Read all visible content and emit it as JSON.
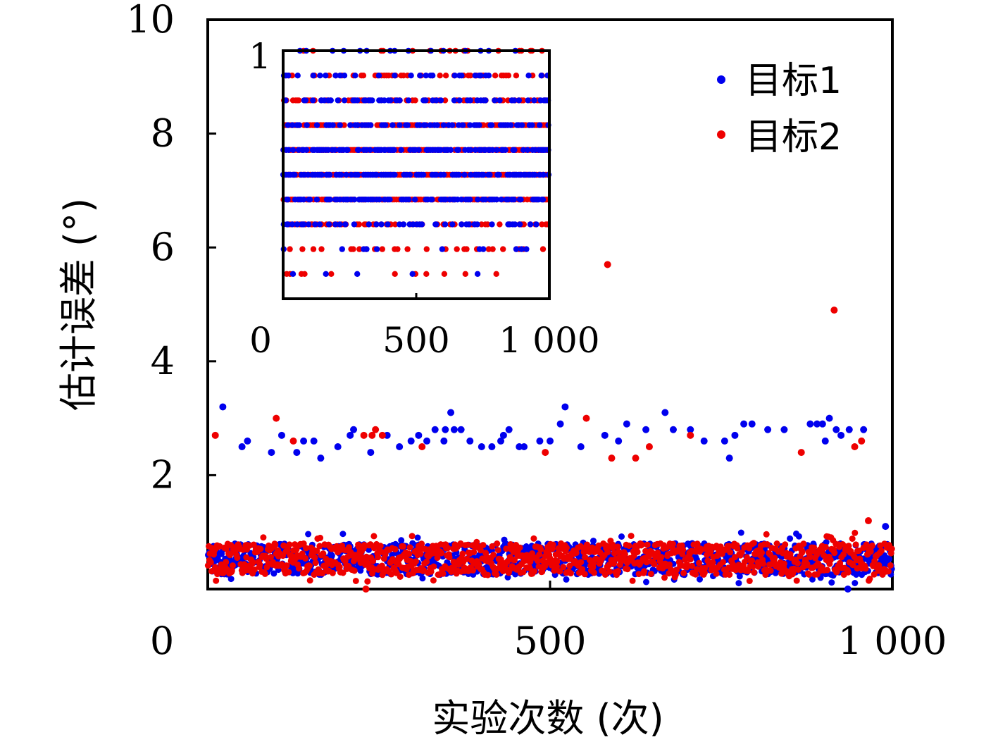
{
  "chart_data": [
    {
      "type": "scatter",
      "title": "",
      "xlabel": "实验次数 (次)",
      "ylabel": "估计误差 (°)",
      "xlim": [
        0,
        1000
      ],
      "ylim": [
        0,
        10
      ],
      "x_ticks": [
        0,
        500,
        1000
      ],
      "x_tick_labels": [
        "0",
        "500",
        "1 000"
      ],
      "y_ticks": [
        2,
        4,
        6,
        8,
        10
      ],
      "y_tick_labels": [
        "2",
        "4",
        "6",
        "8",
        "10"
      ],
      "grid": false,
      "legend_position": "top-right",
      "series": [
        {
          "name": "目标1",
          "color": "#0000ee",
          "outliers": [
            {
              "x": 22,
              "y": 3.2
            },
            {
              "x": 50,
              "y": 2.5
            },
            {
              "x": 58,
              "y": 2.6
            },
            {
              "x": 93,
              "y": 2.4
            },
            {
              "x": 108,
              "y": 2.7
            },
            {
              "x": 130,
              "y": 2.4
            },
            {
              "x": 140,
              "y": 2.6
            },
            {
              "x": 155,
              "y": 2.6
            },
            {
              "x": 165,
              "y": 2.3
            },
            {
              "x": 190,
              "y": 2.5
            },
            {
              "x": 208,
              "y": 2.7
            },
            {
              "x": 213,
              "y": 2.8
            },
            {
              "x": 238,
              "y": 2.4
            },
            {
              "x": 262,
              "y": 2.7
            },
            {
              "x": 280,
              "y": 2.5
            },
            {
              "x": 297,
              "y": 2.6
            },
            {
              "x": 308,
              "y": 2.7
            },
            {
              "x": 320,
              "y": 2.6
            },
            {
              "x": 332,
              "y": 2.8
            },
            {
              "x": 345,
              "y": 2.6
            },
            {
              "x": 347,
              "y": 2.8
            },
            {
              "x": 355,
              "y": 3.1
            },
            {
              "x": 360,
              "y": 2.8
            },
            {
              "x": 370,
              "y": 2.8
            },
            {
              "x": 383,
              "y": 2.6
            },
            {
              "x": 400,
              "y": 2.5
            },
            {
              "x": 415,
              "y": 2.5
            },
            {
              "x": 428,
              "y": 2.6
            },
            {
              "x": 432,
              "y": 2.7
            },
            {
              "x": 440,
              "y": 2.8
            },
            {
              "x": 455,
              "y": 2.5
            },
            {
              "x": 462,
              "y": 2.5
            },
            {
              "x": 485,
              "y": 2.6
            },
            {
              "x": 500,
              "y": 2.6
            },
            {
              "x": 515,
              "y": 2.9
            },
            {
              "x": 522,
              "y": 3.2
            },
            {
              "x": 545,
              "y": 2.5
            },
            {
              "x": 580,
              "y": 2.7
            },
            {
              "x": 600,
              "y": 2.6
            },
            {
              "x": 612,
              "y": 2.9
            },
            {
              "x": 640,
              "y": 2.8
            },
            {
              "x": 668,
              "y": 3.1
            },
            {
              "x": 680,
              "y": 2.8
            },
            {
              "x": 705,
              "y": 2.8
            },
            {
              "x": 725,
              "y": 2.6
            },
            {
              "x": 755,
              "y": 2.6
            },
            {
              "x": 762,
              "y": 2.3
            },
            {
              "x": 770,
              "y": 2.7
            },
            {
              "x": 783,
              "y": 2.9
            },
            {
              "x": 795,
              "y": 2.9
            },
            {
              "x": 818,
              "y": 2.8
            },
            {
              "x": 842,
              "y": 2.8
            },
            {
              "x": 880,
              "y": 2.9
            },
            {
              "x": 890,
              "y": 2.9
            },
            {
              "x": 898,
              "y": 2.9
            },
            {
              "x": 902,
              "y": 2.6
            },
            {
              "x": 908,
              "y": 3.0
            },
            {
              "x": 918,
              "y": 2.8
            },
            {
              "x": 925,
              "y": 2.7
            },
            {
              "x": 937,
              "y": 2.8
            },
            {
              "x": 958,
              "y": 2.8
            },
            {
              "x": 990,
              "y": 1.1
            },
            {
              "x": 935,
              "y": 0.0
            }
          ]
        },
        {
          "name": "目标2",
          "color": "#ee0000",
          "outliers": [
            {
              "x": 11,
              "y": 2.7
            },
            {
              "x": 100,
              "y": 3.0
            },
            {
              "x": 125,
              "y": 2.6
            },
            {
              "x": 228,
              "y": 2.7
            },
            {
              "x": 240,
              "y": 2.7
            },
            {
              "x": 245,
              "y": 2.8
            },
            {
              "x": 255,
              "y": 2.7
            },
            {
              "x": 313,
              "y": 2.5
            },
            {
              "x": 493,
              "y": 2.4
            },
            {
              "x": 553,
              "y": 3.0
            },
            {
              "x": 584,
              "y": 5.7
            },
            {
              "x": 590,
              "y": 2.3
            },
            {
              "x": 625,
              "y": 2.3
            },
            {
              "x": 645,
              "y": 2.5
            },
            {
              "x": 705,
              "y": 2.7
            },
            {
              "x": 867,
              "y": 2.4
            },
            {
              "x": 915,
              "y": 4.9
            },
            {
              "x": 945,
              "y": 2.5
            },
            {
              "x": 955,
              "y": 2.6
            },
            {
              "x": 965,
              "y": 1.2
            },
            {
              "x": 231,
              "y": 0.0
            }
          ]
        }
      ],
      "bulk_band": {
        "description_of_values": "about 1000 trials per series with errors between 0.1 and 1.0",
        "y_range": [
          0.1,
          1.0
        ]
      }
    },
    {
      "type": "scatter",
      "title": "",
      "xlim": [
        0,
        1000
      ],
      "ylim": [
        0,
        1
      ],
      "x_ticks": [
        0,
        500,
        1000
      ],
      "x_tick_labels": [
        "0",
        "500",
        "1 000"
      ],
      "y_tick_labels": [
        "1"
      ],
      "levels": [
        0.1,
        0.2,
        0.3,
        0.4,
        0.5,
        0.6,
        0.7,
        0.8,
        0.9,
        1.0
      ],
      "series": [
        {
          "name": "目标1",
          "color": "#0000ee"
        },
        {
          "name": "目标2",
          "color": "#ee0000"
        }
      ]
    }
  ],
  "legend": {
    "items": [
      {
        "label": "目标1",
        "color": "#0000ee"
      },
      {
        "label": "目标2",
        "color": "#ee0000"
      }
    ]
  }
}
